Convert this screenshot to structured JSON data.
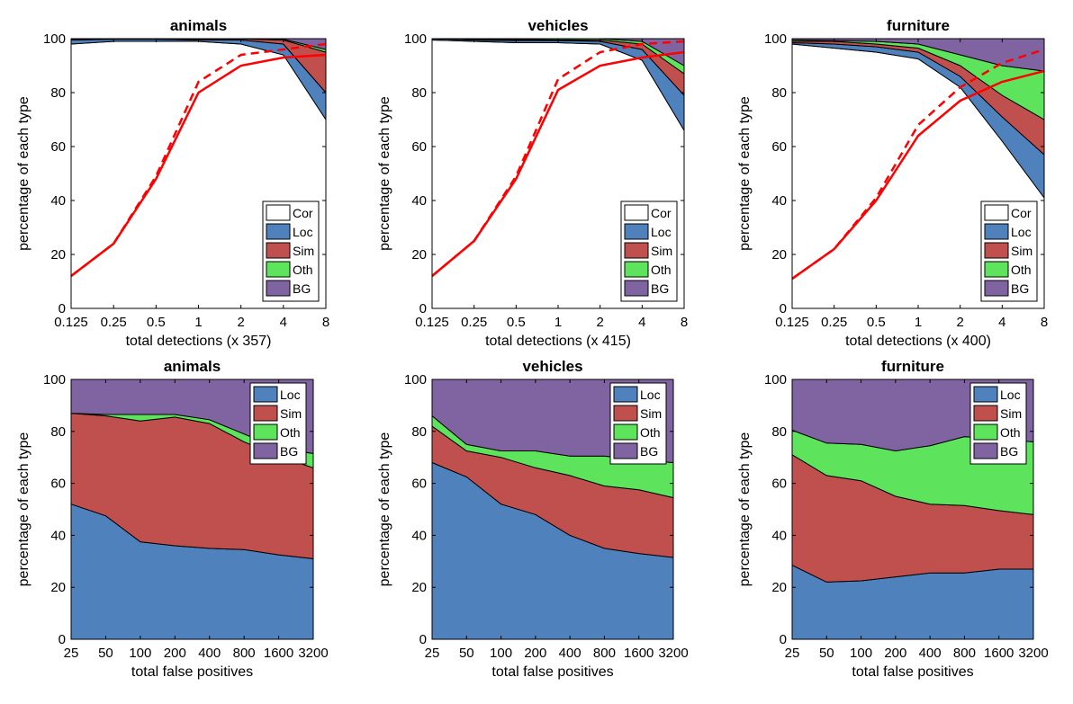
{
  "chart_data": [
    {
      "type": "area",
      "subtype": "cumulative-detections",
      "title": "animals",
      "xlabel": "total detections (x 357)",
      "ylabel": "percentage of each type",
      "x_scale": "log2",
      "x": [
        0.125,
        0.25,
        0.5,
        1,
        2,
        4,
        8
      ],
      "xtick_labels": [
        "0.125",
        "0.25",
        "0.5",
        "1",
        "2",
        "4",
        "8"
      ],
      "ylim": [
        0,
        100
      ],
      "yticks": [
        0,
        20,
        40,
        60,
        80,
        100
      ],
      "grid": false,
      "legend_position": "bottom-right",
      "stack_order": [
        "Cor",
        "Loc",
        "Sim",
        "Oth",
        "BG"
      ],
      "stack_tops": {
        "Cor": [
          98,
          99,
          99,
          99,
          98,
          94,
          70
        ],
        "Loc": [
          99.5,
          99.8,
          99.8,
          99.5,
          99.5,
          98,
          80
        ],
        "Sim": [
          99.9,
          99.9,
          99.9,
          99.9,
          99.9,
          99.5,
          95
        ],
        "Oth": [
          100,
          100,
          100,
          100,
          100,
          99.8,
          96
        ]
      },
      "series": [
        {
          "name": "Cor",
          "color": "#ffffff"
        },
        {
          "name": "Loc",
          "color": "#4f81bd"
        },
        {
          "name": "Sim",
          "color": "#c0504d"
        },
        {
          "name": "Oth",
          "color": "#5ee35c"
        },
        {
          "name": "BG",
          "color": "#8064a2"
        }
      ],
      "red_solid": [
        12,
        24,
        48,
        80,
        90,
        93,
        94
      ],
      "red_dashed": [
        12,
        24,
        49,
        84,
        94,
        96,
        98
      ]
    },
    {
      "type": "area",
      "subtype": "cumulative-detections",
      "title": "vehicles",
      "xlabel": "total detections (x 415)",
      "ylabel": "percentage of each type",
      "x_scale": "log2",
      "x": [
        0.125,
        0.25,
        0.5,
        1,
        2,
        4,
        8
      ],
      "xtick_labels": [
        "0.125",
        "0.25",
        "0.5",
        "1",
        "2",
        "4",
        "8"
      ],
      "ylim": [
        0,
        100
      ],
      "yticks": [
        0,
        20,
        40,
        60,
        80,
        100
      ],
      "grid": false,
      "legend_position": "bottom-right",
      "stack_order": [
        "Cor",
        "Loc",
        "Sim",
        "Oth",
        "BG"
      ],
      "stack_tops": {
        "Cor": [
          99.5,
          99,
          98.5,
          98.5,
          98,
          92,
          66
        ],
        "Loc": [
          100,
          99.5,
          99.3,
          99.3,
          99,
          96,
          79
        ],
        "Sim": [
          100,
          99.8,
          99.7,
          99.6,
          99.5,
          98,
          87
        ],
        "Oth": [
          100,
          100,
          100,
          100,
          100,
          99,
          90
        ]
      },
      "series": [
        {
          "name": "Cor",
          "color": "#ffffff"
        },
        {
          "name": "Loc",
          "color": "#4f81bd"
        },
        {
          "name": "Sim",
          "color": "#c0504d"
        },
        {
          "name": "Oth",
          "color": "#5ee35c"
        },
        {
          "name": "BG",
          "color": "#8064a2"
        }
      ],
      "red_solid": [
        12,
        25,
        48,
        81,
        90,
        93,
        95
      ],
      "red_dashed": [
        12,
        25,
        49,
        85,
        95,
        98,
        99
      ]
    },
    {
      "type": "area",
      "subtype": "cumulative-detections",
      "title": "furniture",
      "xlabel": "total detections (x 400)",
      "ylabel": "percentage of each type",
      "x_scale": "log2",
      "x": [
        0.125,
        0.25,
        0.5,
        1,
        2,
        4,
        8
      ],
      "xtick_labels": [
        "0.125",
        "0.25",
        "0.5",
        "1",
        "2",
        "4",
        "8"
      ],
      "ylim": [
        0,
        100
      ],
      "yticks": [
        0,
        20,
        40,
        60,
        80,
        100
      ],
      "grid": false,
      "legend_position": "bottom-right",
      "stack_order": [
        "Cor",
        "Loc",
        "Sim",
        "Oth",
        "BG"
      ],
      "stack_tops": {
        "Cor": [
          98,
          96.5,
          95,
          92.5,
          82,
          62,
          41
        ],
        "Loc": [
          98.5,
          98,
          97,
          95,
          86,
          71,
          57
        ],
        "Sim": [
          99,
          99,
          98,
          96.5,
          90,
          79,
          70
        ],
        "Oth": [
          99.5,
          99.3,
          99,
          98,
          94,
          90,
          88
        ]
      },
      "series": [
        {
          "name": "Cor",
          "color": "#ffffff"
        },
        {
          "name": "Loc",
          "color": "#4f81bd"
        },
        {
          "name": "Sim",
          "color": "#c0504d"
        },
        {
          "name": "Oth",
          "color": "#5ee35c"
        },
        {
          "name": "BG",
          "color": "#8064a2"
        }
      ],
      "red_solid": [
        11,
        22,
        40,
        64,
        77,
        84,
        88
      ],
      "red_dashed": [
        11,
        22,
        41,
        68,
        82,
        91,
        96
      ]
    },
    {
      "type": "area",
      "subtype": "false-positive-breakdown",
      "title": "animals",
      "xlabel": "total false positives",
      "ylabel": "percentage of each type",
      "x_scale": "log2",
      "x": [
        25,
        50,
        100,
        200,
        400,
        800,
        1600,
        3200
      ],
      "xtick_labels": [
        "25",
        "50",
        "100",
        "200",
        "400",
        "800",
        "1600",
        "3200"
      ],
      "ylim": [
        0,
        100
      ],
      "yticks": [
        0,
        20,
        40,
        60,
        80,
        100
      ],
      "grid": false,
      "legend_position": "top-right",
      "stack_order": [
        "Loc",
        "Sim",
        "Oth",
        "BG"
      ],
      "stack_tops": {
        "Loc": [
          52,
          47.5,
          37.5,
          36,
          35,
          34.5,
          32.5,
          31
        ],
        "Sim": [
          87,
          86,
          84,
          85.5,
          83,
          76,
          70.5,
          66
        ],
        "Oth": [
          87,
          86.5,
          86.5,
          86.5,
          84.5,
          79,
          73.5,
          71.5
        ]
      },
      "series": [
        {
          "name": "Loc",
          "color": "#4f81bd"
        },
        {
          "name": "Sim",
          "color": "#c0504d"
        },
        {
          "name": "Oth",
          "color": "#5ee35c"
        },
        {
          "name": "BG",
          "color": "#8064a2"
        }
      ]
    },
    {
      "type": "area",
      "subtype": "false-positive-breakdown",
      "title": "vehicles",
      "xlabel": "total false positives",
      "ylabel": "percentage of each type",
      "x_scale": "log2",
      "x": [
        25,
        50,
        100,
        200,
        400,
        800,
        1600,
        3200
      ],
      "xtick_labels": [
        "25",
        "50",
        "100",
        "200",
        "400",
        "800",
        "1600",
        "3200"
      ],
      "ylim": [
        0,
        100
      ],
      "yticks": [
        0,
        20,
        40,
        60,
        80,
        100
      ],
      "grid": false,
      "legend_position": "top-right",
      "stack_order": [
        "Loc",
        "Sim",
        "Oth",
        "BG"
      ],
      "stack_tops": {
        "Loc": [
          68,
          62.5,
          52,
          48,
          40,
          35,
          33,
          31.5
        ],
        "Sim": [
          82,
          72.5,
          70,
          66,
          63,
          59,
          57.5,
          54.5
        ],
        "Oth": [
          86,
          75,
          72.5,
          72.5,
          70.5,
          70.5,
          69,
          68
        ]
      },
      "series": [
        {
          "name": "Loc",
          "color": "#4f81bd"
        },
        {
          "name": "Sim",
          "color": "#c0504d"
        },
        {
          "name": "Oth",
          "color": "#5ee35c"
        },
        {
          "name": "BG",
          "color": "#8064a2"
        }
      ]
    },
    {
      "type": "area",
      "subtype": "false-positive-breakdown",
      "title": "furniture",
      "xlabel": "total false positives",
      "ylabel": "percentage of each type",
      "x_scale": "log2",
      "x": [
        25,
        50,
        100,
        200,
        400,
        800,
        1600,
        3200
      ],
      "xtick_labels": [
        "25",
        "50",
        "100",
        "200",
        "400",
        "800",
        "1600",
        "3200"
      ],
      "ylim": [
        0,
        100
      ],
      "yticks": [
        0,
        20,
        40,
        60,
        80,
        100
      ],
      "grid": false,
      "legend_position": "top-right",
      "stack_order": [
        "Loc",
        "Sim",
        "Oth",
        "BG"
      ],
      "stack_tops": {
        "Loc": [
          28.5,
          22,
          22.5,
          24,
          25.5,
          25.5,
          27,
          27
        ],
        "Sim": [
          71,
          63,
          61,
          55,
          52,
          51.5,
          49.5,
          48
        ],
        "Oth": [
          80.5,
          75.5,
          75,
          72.5,
          74.5,
          78,
          77,
          76
        ]
      },
      "series": [
        {
          "name": "Loc",
          "color": "#4f81bd"
        },
        {
          "name": "Sim",
          "color": "#c0504d"
        },
        {
          "name": "Oth",
          "color": "#5ee35c"
        },
        {
          "name": "BG",
          "color": "#8064a2"
        }
      ]
    }
  ]
}
